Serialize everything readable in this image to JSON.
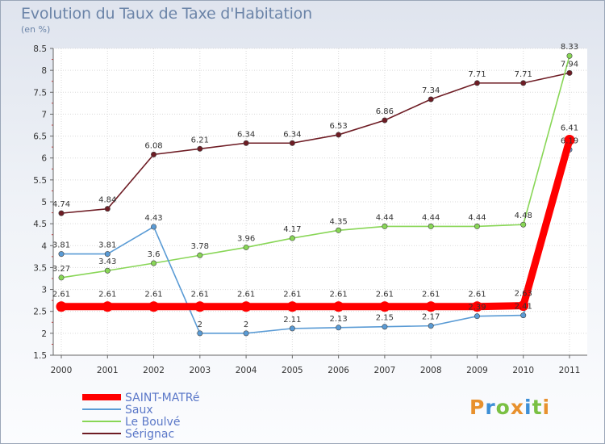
{
  "header": {
    "title": "Evolution du Taux de Taxe d'Habitation",
    "subtitle": "(en %)"
  },
  "brand": {
    "letters": [
      "P",
      "r",
      "o",
      "x",
      "i",
      "t",
      "i"
    ],
    "colors": [
      "#e8912e",
      "#3d8fd6",
      "#7ac043",
      "#e8912e",
      "#3d8fd6",
      "#7ac043",
      "#e8912e"
    ]
  },
  "chart_data": {
    "type": "line",
    "title": "Evolution du Taux de Taxe d'Habitation",
    "subtitle": "(en %)",
    "x": [
      "2000",
      "2001",
      "2002",
      "2003",
      "2004",
      "2005",
      "2006",
      "2007",
      "2008",
      "2009",
      "2010",
      "2011"
    ],
    "ylim": [
      1.5,
      8.5
    ],
    "yticks": [
      "1.5",
      "2",
      "2.5",
      "3",
      "3.5",
      "4",
      "4.5",
      "5",
      "5.5",
      "6",
      "6.5",
      "7",
      "7.5",
      "8",
      "8.5"
    ],
    "grid": true,
    "legend_position": "bottom-left",
    "series": [
      {
        "name": "Sérignac",
        "color": "#6e1c24",
        "values": [
          4.74,
          4.84,
          6.08,
          6.21,
          6.34,
          6.34,
          6.53,
          6.86,
          7.34,
          7.71,
          7.71,
          7.94
        ],
        "labels": [
          "4.74",
          "4.84",
          "6.08",
          "6.21",
          "6.34",
          "6.34",
          "6.53",
          "6.86",
          "7.34",
          "7.71",
          "7.71",
          "7.94"
        ]
      },
      {
        "name": "Le Boulvé",
        "color": "#88d656",
        "values": [
          3.27,
          3.43,
          3.6,
          3.78,
          3.96,
          4.17,
          4.35,
          4.44,
          4.44,
          4.44,
          4.48,
          8.33
        ],
        "labels": [
          "3.27",
          "3.43",
          "3.6",
          "3.78",
          "3.96",
          "4.17",
          "4.35",
          "4.44",
          "4.44",
          "4.44",
          "4.48",
          "8.33"
        ]
      },
      {
        "name": "Saux",
        "color": "#5a9bd5",
        "values": [
          3.81,
          3.81,
          4.43,
          2,
          2,
          2.11,
          2.13,
          2.15,
          2.17,
          2.39,
          2.41,
          6.19
        ],
        "labels": [
          "3.81",
          "3.81",
          "4.43",
          "2",
          "2",
          "2.11",
          "2.13",
          "2.15",
          "2.17",
          "2.39",
          "2.41",
          "6.19"
        ]
      },
      {
        "name": "SAINT-MATRé",
        "color": "#ff0000",
        "values": [
          2.61,
          2.61,
          2.61,
          2.61,
          2.61,
          2.61,
          2.61,
          2.61,
          2.61,
          2.61,
          2.63,
          6.41
        ],
        "labels": [
          "2.61",
          "2.61",
          "2.61",
          "2.61",
          "2.61",
          "2.61",
          "2.61",
          "2.61",
          "2.61",
          "2.61",
          "2.63",
          "6.41"
        ]
      }
    ],
    "legend": [
      "SAINT-MATRé",
      "Saux",
      "Le Boulvé",
      "Sérignac"
    ]
  }
}
